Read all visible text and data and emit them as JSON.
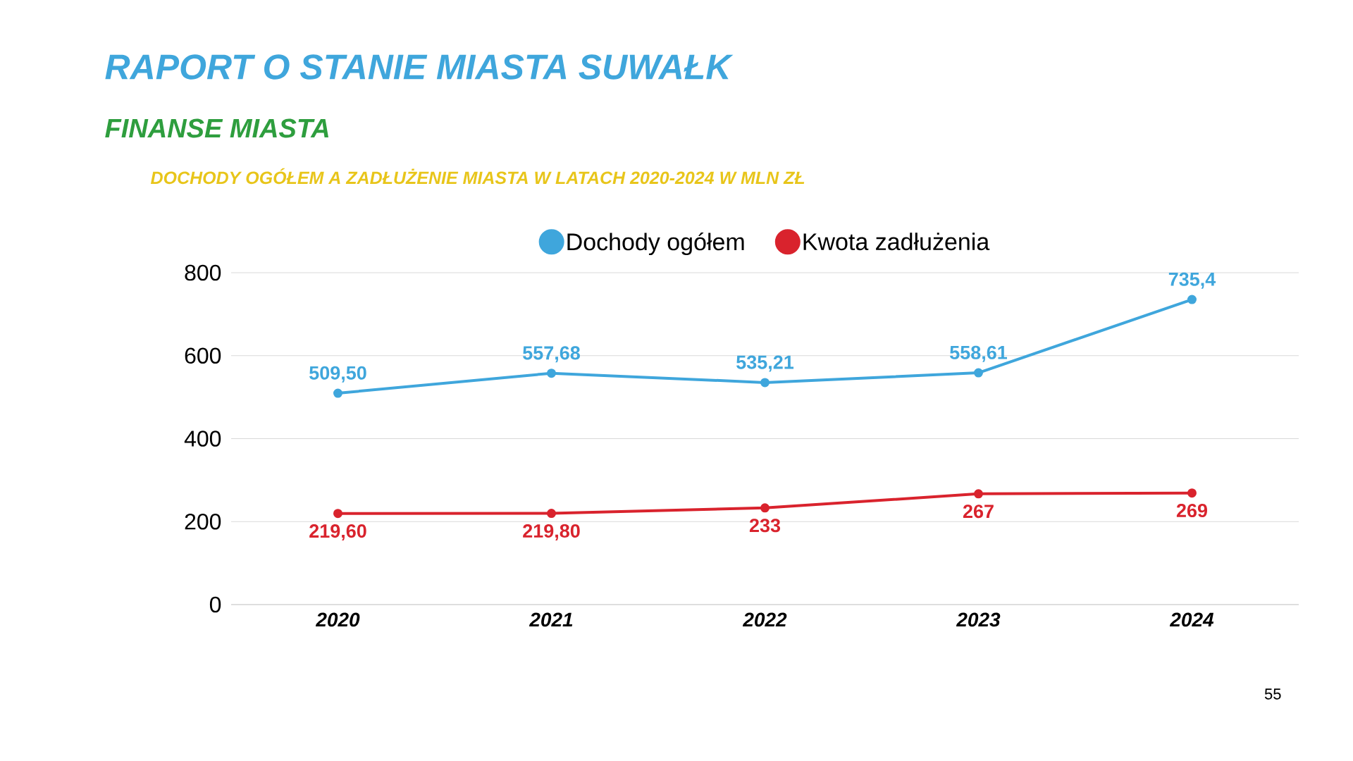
{
  "chart_data": {
    "type": "line",
    "title": "RAPORT O STANIE MIASTA SUWAŁK",
    "subtitle": "FINANSE MIASTA",
    "annotations": [
      "DOCHODY OGÓŁEM A ZADŁUŻENIE MIASTA W LATACH 2020-2024 W MLN ZŁ",
      "55"
    ],
    "categories": [
      "2020",
      "2021",
      "2022",
      "2023",
      "2024"
    ],
    "series": [
      {
        "name": "Dochody ogółem",
        "color": "#3fa6dc",
        "values": [
          509.5,
          557.68,
          535.21,
          558.61,
          735.4
        ],
        "value_labels": [
          "509,50",
          "557,68",
          "535,21",
          "558,61",
          "735,4"
        ]
      },
      {
        "name": "Kwota zadłużenia",
        "color": "#d9232d",
        "values": [
          219.6,
          219.8,
          233,
          267,
          269
        ],
        "value_labels": [
          "219,60",
          "219,80",
          "233",
          "267",
          "269"
        ]
      }
    ],
    "ylim": [
      0,
      800
    ],
    "yticks": [
      0,
      200,
      400,
      600,
      800
    ],
    "grid": "y",
    "legend": "top",
    "marker": "circle",
    "line_style": "solid"
  }
}
